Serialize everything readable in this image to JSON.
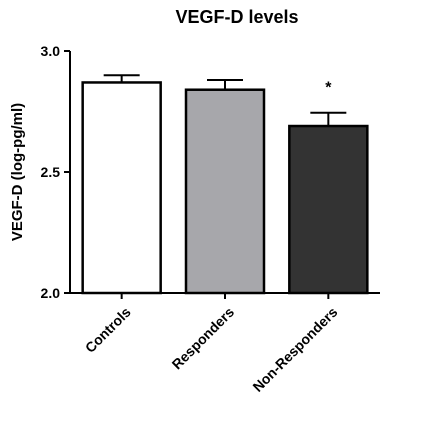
{
  "chart_data": {
    "type": "bar",
    "title": "VEGF-D levels",
    "ylabel": "VEGF-D (log-pg/ml)",
    "xlabel": "",
    "ylim": [
      2.0,
      3.0
    ],
    "yticks": [
      2.0,
      2.5,
      3.0
    ],
    "ytick_labels": [
      "2.0",
      "2.5",
      "3.0"
    ],
    "categories": [
      "Controls",
      "Responders",
      "Non-Responders"
    ],
    "values": [
      2.87,
      2.84,
      2.69
    ],
    "error_upper": [
      0.03,
      0.04,
      0.055
    ],
    "bar_colors": [
      "#ffffff",
      "#a7a7ab",
      "#333333"
    ],
    "edge_color": "#000000",
    "annotations": [
      "",
      "",
      "*"
    ],
    "grid": false,
    "legend": "none"
  }
}
